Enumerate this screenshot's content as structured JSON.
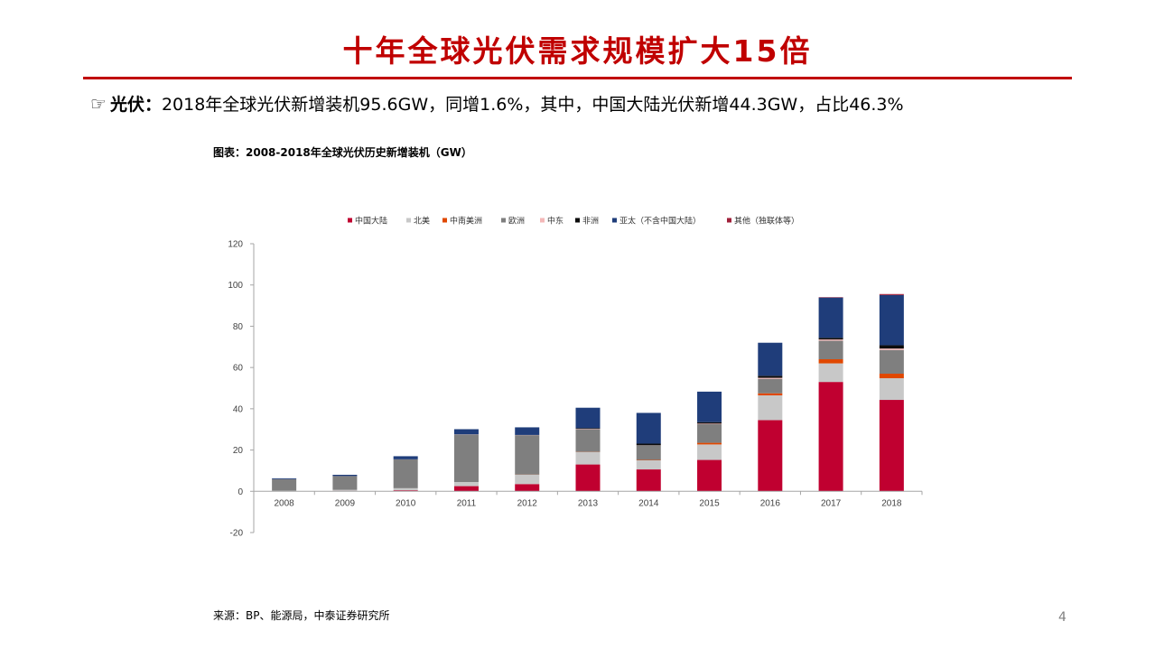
{
  "slide": {
    "title": "十年全球光伏需求规模扩大15倍",
    "bullet_icon": "pointing-hand-icon",
    "bullet_icon_glyph": "☞",
    "bullet_lead": "光伏：",
    "bullet_text": "2018年全球光伏新增装机95.6GW，同增1.6%，其中，中国大陆光伏新增44.3GW，占比46.3%",
    "source": "来源：BP、能源局，中泰证券研究所",
    "page_number": "4",
    "accent_color": "#c00000"
  },
  "chart_data": {
    "type": "bar",
    "stacked": true,
    "title": "图表：2008-2018年全球光伏历史新增装机（GW）",
    "xlabel": "",
    "ylabel": "",
    "ylim": [
      -20,
      120
    ],
    "yticks": [
      120,
      100,
      80,
      60,
      40,
      20,
      0,
      -20
    ],
    "grid": false,
    "legend_position": "top",
    "categories": [
      "2008",
      "2009",
      "2010",
      "2011",
      "2012",
      "2013",
      "2014",
      "2015",
      "2016",
      "2017",
      "2018"
    ],
    "series": [
      {
        "name": "中国大陆",
        "color": "#c00030",
        "values": [
          0.0,
          0.2,
          0.5,
          2.5,
          3.5,
          13.0,
          10.6,
          15.2,
          34.5,
          53.0,
          44.3
        ]
      },
      {
        "name": "北美",
        "color": "#c8c8c8",
        "values": [
          0.3,
          0.5,
          1.0,
          2.0,
          4.5,
          6.0,
          4.4,
          7.5,
          12.0,
          9.0,
          10.5
        ]
      },
      {
        "name": "中南美洲",
        "color": "#e04800",
        "values": [
          0.0,
          0.0,
          0.0,
          0.0,
          0.1,
          0.1,
          0.2,
          0.8,
          1.0,
          2.0,
          2.2
        ]
      },
      {
        "name": "欧洲",
        "color": "#7f7f7f",
        "values": [
          5.6,
          6.7,
          14.0,
          23.0,
          19.0,
          11.0,
          7.0,
          9.0,
          7.0,
          9.0,
          11.5
        ]
      },
      {
        "name": "中东",
        "color": "#f4b8b8",
        "values": [
          0.0,
          0.0,
          0.0,
          0.1,
          0.1,
          0.2,
          0.1,
          0.3,
          0.5,
          0.6,
          0.7
        ]
      },
      {
        "name": "非洲",
        "color": "#0d0d0d",
        "values": [
          0.0,
          0.0,
          0.0,
          0.0,
          0.1,
          0.3,
          0.8,
          0.7,
          1.0,
          0.8,
          1.6
        ]
      },
      {
        "name": "亚太（不含中国大陆）",
        "color": "#1f3d7a",
        "values": [
          0.4,
          0.6,
          1.5,
          2.5,
          3.7,
          9.9,
          14.9,
          14.8,
          16.0,
          19.5,
          24.3
        ]
      },
      {
        "name": "其他（独联体等）",
        "color": "#a0203a",
        "values": [
          0.0,
          0.0,
          0.0,
          0.0,
          0.0,
          0.0,
          0.0,
          0.0,
          0.0,
          0.2,
          0.5
        ]
      }
    ]
  }
}
